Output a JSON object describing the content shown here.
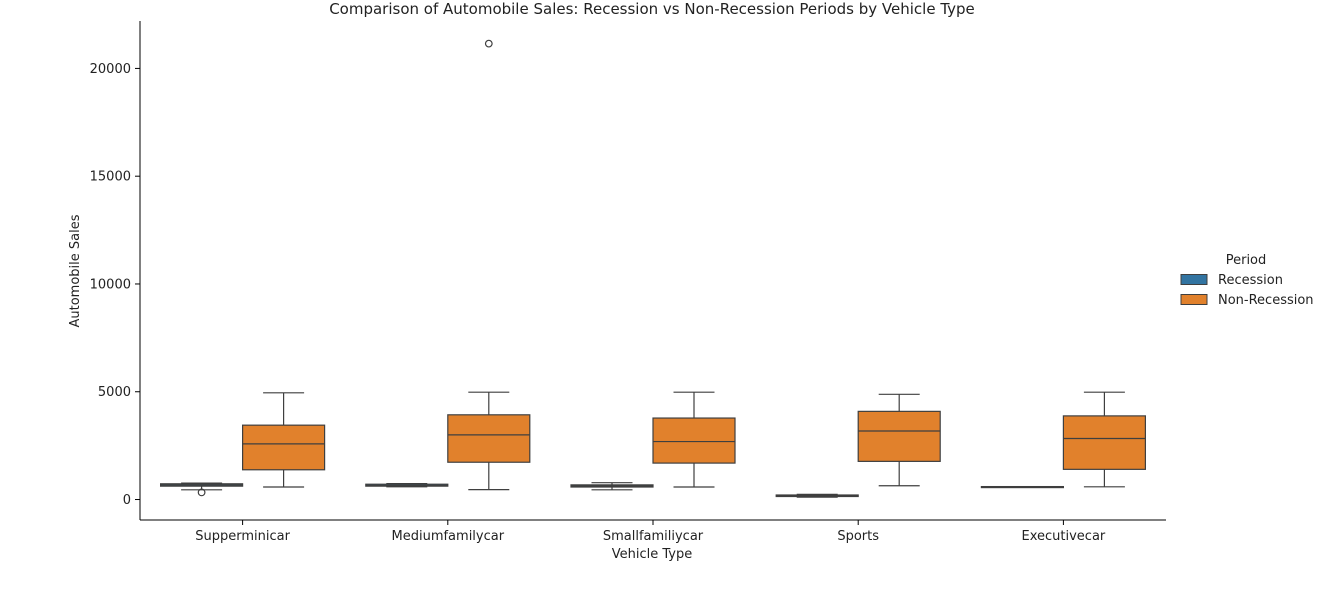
{
  "chart_data": {
    "type": "box",
    "title": "Comparison of Automobile Sales: Recession vs Non-Recession Periods by Vehicle Type",
    "xlabel": "Vehicle Type",
    "ylabel": "Automobile Sales",
    "ylim": [
      -950,
      22200
    ],
    "yticks": [
      0,
      5000,
      10000,
      15000,
      20000
    ],
    "grid": false,
    "categories": [
      "Supperminicar",
      "Mediumfamilycar",
      "Smallfamiliycar",
      "Sports",
      "Executivecar"
    ],
    "legend": {
      "title": "Period",
      "placement": "right",
      "entries": [
        "Recession",
        "Non-Recession"
      ]
    },
    "series": [
      {
        "name": "Recession",
        "color": "#3274a1",
        "boxes": [
          {
            "whisker_low": 450,
            "q1": 620,
            "median": 680,
            "q3": 730,
            "whisker_high": 760,
            "outliers": [
              330
            ]
          },
          {
            "whisker_low": 590,
            "q1": 620,
            "median": 660,
            "q3": 710,
            "whisker_high": 740,
            "outliers": []
          },
          {
            "whisker_low": 450,
            "q1": 580,
            "median": 630,
            "q3": 680,
            "whisker_high": 780,
            "outliers": []
          },
          {
            "whisker_low": 110,
            "q1": 140,
            "median": 170,
            "q3": 210,
            "whisker_high": 240,
            "outliers": []
          },
          {
            "whisker_low": 580,
            "q1": 580,
            "median": 590,
            "q3": 600,
            "whisker_high": 600,
            "outliers": []
          }
        ]
      },
      {
        "name": "Non-Recession",
        "color": "#e1812c",
        "boxes": [
          {
            "whisker_low": 580,
            "q1": 1380,
            "median": 2580,
            "q3": 3450,
            "whisker_high": 4950,
            "outliers": []
          },
          {
            "whisker_low": 460,
            "q1": 1730,
            "median": 3000,
            "q3": 3930,
            "whisker_high": 4980,
            "outliers": [
              21150
            ]
          },
          {
            "whisker_low": 580,
            "q1": 1690,
            "median": 2690,
            "q3": 3780,
            "whisker_high": 4980,
            "outliers": []
          },
          {
            "whisker_low": 640,
            "q1": 1770,
            "median": 3180,
            "q3": 4090,
            "whisker_high": 4880,
            "outliers": []
          },
          {
            "whisker_low": 590,
            "q1": 1400,
            "median": 2830,
            "q3": 3880,
            "whisker_high": 4980,
            "outliers": []
          }
        ]
      }
    ]
  }
}
